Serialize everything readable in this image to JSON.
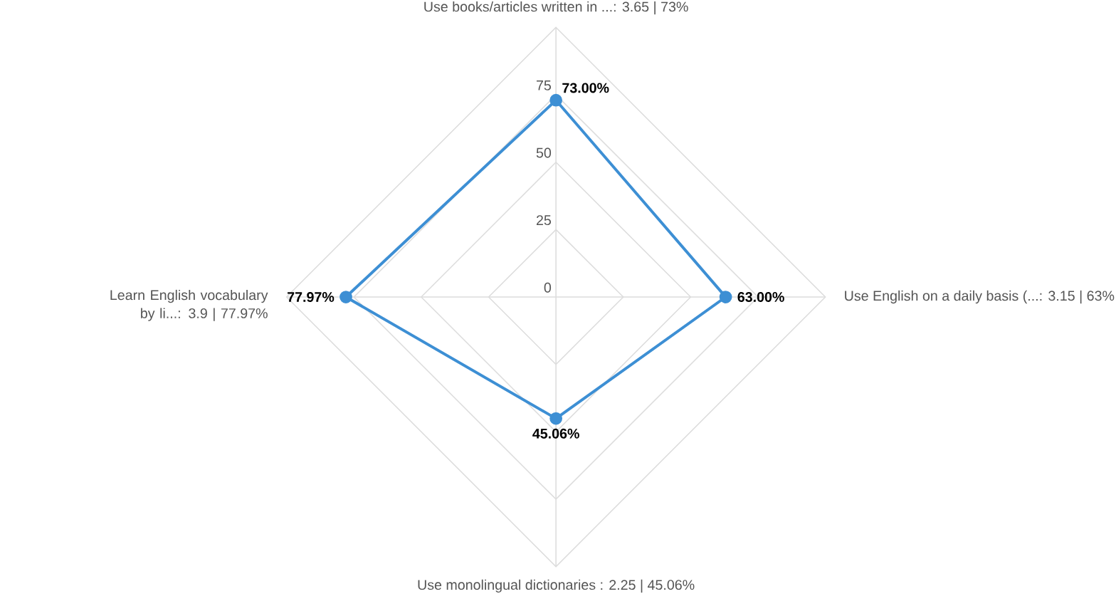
{
  "chart_data": {
    "type": "radar",
    "categories": [
      "Use books/articles written in ...: 3.65 | 73%",
      "Use English on a daily basis (...: 3.15 | 63%",
      "Use monolingual dictionaries : 2.25 | 45.06%",
      "Learn English vocabulary by li...: 3.9 | 77.97%"
    ],
    "series": [
      {
        "color": "#3d8fd4",
        "values": [
          73,
          63,
          45.06,
          77.97
        ],
        "value_labels": [
          "73.00%",
          "63.00%",
          "45.06%",
          "77.97%"
        ]
      }
    ],
    "ylim": [
      0,
      100
    ],
    "yticks": [
      0,
      25,
      50,
      75
    ],
    "grid": true,
    "marker": "circle",
    "line_style": "solid"
  }
}
